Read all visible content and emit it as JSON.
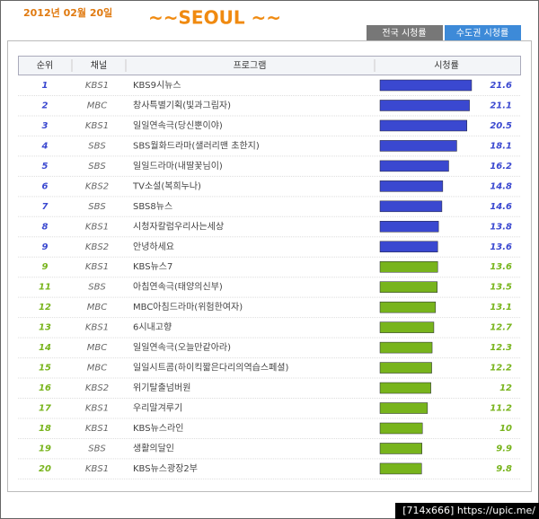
{
  "header": {
    "date": "2012년 02월 20일",
    "title": "~~SEOUL ~~",
    "tabs": [
      "전국 시청률",
      "수도권 시청률"
    ]
  },
  "table": {
    "columns": [
      "순위",
      "채널",
      "프로그램",
      "시청률"
    ],
    "rows": [
      {
        "rank": 1,
        "channel": "KBS1",
        "program": "KBS9시뉴스",
        "rating": 21.6,
        "color": "#3a48d0"
      },
      {
        "rank": 2,
        "channel": "MBC",
        "program": "창사특별기획(빛과그림자)",
        "rating": 21.1,
        "color": "#3a48d0"
      },
      {
        "rank": 3,
        "channel": "KBS1",
        "program": "일일연속극(당신뿐이야)",
        "rating": 20.5,
        "color": "#3a48d0"
      },
      {
        "rank": 4,
        "channel": "SBS",
        "program": "SBS월화드라마(샐러리맨 초한지)",
        "rating": 18.1,
        "color": "#3a48d0"
      },
      {
        "rank": 5,
        "channel": "SBS",
        "program": "일일드라마(내딸꽃님이)",
        "rating": 16.2,
        "color": "#3a48d0"
      },
      {
        "rank": 6,
        "channel": "KBS2",
        "program": "TV소설(복희누나)",
        "rating": 14.8,
        "color": "#3a48d0"
      },
      {
        "rank": 7,
        "channel": "SBS",
        "program": "SBS8뉴스",
        "rating": 14.6,
        "color": "#3a48d0"
      },
      {
        "rank": 8,
        "channel": "KBS1",
        "program": "시청자칼럼우리사는세상",
        "rating": 13.8,
        "color": "#3a48d0"
      },
      {
        "rank": 9,
        "channel": "KBS2",
        "program": "안녕하세요",
        "rating": 13.6,
        "color": "#3a48d0"
      },
      {
        "rank": 9,
        "channel": "KBS1",
        "program": "KBS뉴스7",
        "rating": 13.6,
        "color": "#78b41c"
      },
      {
        "rank": 11,
        "channel": "SBS",
        "program": "아침연속극(태양의신부)",
        "rating": 13.5,
        "color": "#78b41c"
      },
      {
        "rank": 12,
        "channel": "MBC",
        "program": "MBC아침드라마(위험한여자)",
        "rating": 13.1,
        "color": "#78b41c"
      },
      {
        "rank": 13,
        "channel": "KBS1",
        "program": "6시내고향",
        "rating": 12.7,
        "color": "#78b41c"
      },
      {
        "rank": 14,
        "channel": "MBC",
        "program": "일일연속극(오늘만같아라)",
        "rating": 12.3,
        "color": "#78b41c"
      },
      {
        "rank": 15,
        "channel": "MBC",
        "program": "일일시트콤(하이킥짧은다리의역습스페셜)",
        "rating": 12.2,
        "color": "#78b41c"
      },
      {
        "rank": 16,
        "channel": "KBS2",
        "program": "위기탈출넘버원",
        "rating": 12,
        "color": "#78b41c"
      },
      {
        "rank": 17,
        "channel": "KBS1",
        "program": "우리말겨루기",
        "rating": 11.2,
        "color": "#78b41c"
      },
      {
        "rank": 18,
        "channel": "KBS1",
        "program": "KBS뉴스라인",
        "rating": 10,
        "color": "#78b41c"
      },
      {
        "rank": 19,
        "channel": "SBS",
        "program": "생활의달인",
        "rating": 9.9,
        "color": "#78b41c"
      },
      {
        "rank": 20,
        "channel": "KBS1",
        "program": "KBS뉴스광장2부",
        "rating": 9.8,
        "color": "#78b41c"
      }
    ]
  },
  "footer": "[714x666] https://upic.me/"
}
